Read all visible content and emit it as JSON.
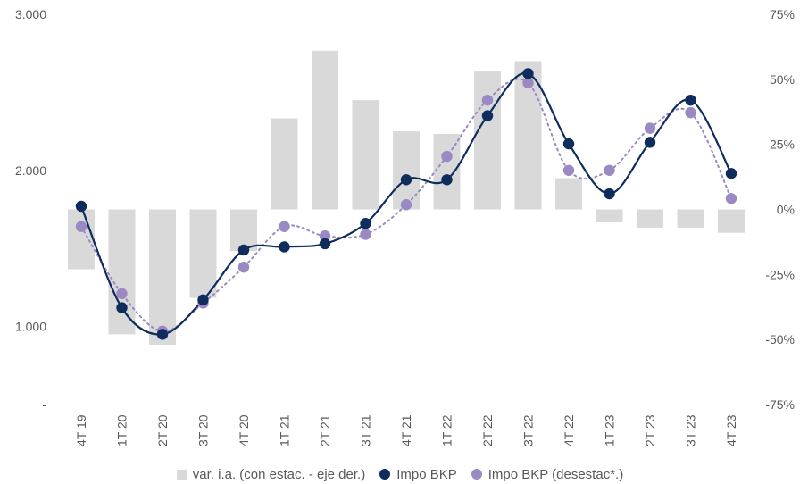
{
  "chart_data": {
    "type": "bar+line",
    "categories": [
      "4T 19",
      "1T 20",
      "2T 20",
      "3T 20",
      "4T 20",
      "1T 21",
      "2T 21",
      "3T 21",
      "4T 21",
      "1T 22",
      "2T 22",
      "3T 22",
      "4T 22",
      "1T 23",
      "2T 23",
      "3T 23",
      "4T 23"
    ],
    "left_axis": {
      "ticks": [
        "-",
        "1.000",
        "2.000",
        "3.000"
      ],
      "ylim": [
        500,
        3000
      ]
    },
    "right_axis": {
      "ticks": [
        "-75%",
        "-50%",
        "-25%",
        "0%",
        "25%",
        "50%",
        "75%"
      ],
      "ylim": [
        -75,
        75
      ]
    },
    "series": [
      {
        "name": "var. i.a. (con estac. - eje der.)",
        "kind": "bar",
        "axis": "right",
        "color": "#d9d9d9",
        "values": [
          -23,
          -48,
          -52,
          -34,
          -16,
          35,
          61,
          42,
          30,
          29,
          53,
          57,
          12,
          -5,
          -7,
          -7,
          -9
        ]
      },
      {
        "name": "Impo BKP",
        "kind": "line",
        "axis": "left",
        "color": "#0e2c5c",
        "line_style": "solid",
        "values": [
          1770,
          1120,
          950,
          1170,
          1490,
          1510,
          1530,
          1660,
          1940,
          1940,
          2350,
          2620,
          2170,
          1850,
          2180,
          2450,
          1980
        ]
      },
      {
        "name": "Impo BKP (desestac*.)",
        "kind": "line",
        "axis": "left",
        "color": "#9b89c4",
        "line_style": "dotted",
        "values": [
          1640,
          1210,
          970,
          1150,
          1380,
          1640,
          1580,
          1590,
          1780,
          2090,
          2450,
          2560,
          2000,
          2000,
          2270,
          2370,
          1820
        ]
      }
    ],
    "legend_position": "bottom",
    "grid": false
  }
}
